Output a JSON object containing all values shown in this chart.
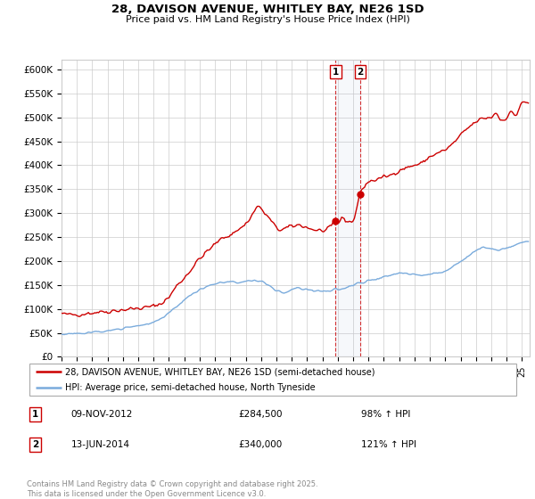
{
  "title": "28, DAVISON AVENUE, WHITLEY BAY, NE26 1SD",
  "subtitle": "Price paid vs. HM Land Registry's House Price Index (HPI)",
  "ylim": [
    0,
    620000
  ],
  "yticks": [
    0,
    50000,
    100000,
    150000,
    200000,
    250000,
    300000,
    350000,
    400000,
    450000,
    500000,
    550000,
    600000
  ],
  "ytick_labels": [
    "£0",
    "£50K",
    "£100K",
    "£150K",
    "£200K",
    "£250K",
    "£300K",
    "£350K",
    "£400K",
    "£450K",
    "£500K",
    "£550K",
    "£600K"
  ],
  "xlim_start": 1995.0,
  "xlim_end": 2025.5,
  "property_color": "#cc0000",
  "hpi_color": "#7aabdc",
  "sale1_date": 2012.86,
  "sale1_price": 284500,
  "sale2_date": 2014.45,
  "sale2_price": 340000,
  "sale1_label": "1",
  "sale2_label": "2",
  "sale1_info": "09-NOV-2012",
  "sale1_amount": "£284,500",
  "sale1_hpi": "98% ↑ HPI",
  "sale2_info": "13-JUN-2014",
  "sale2_amount": "£340,000",
  "sale2_hpi": "121% ↑ HPI",
  "legend1": "28, DAVISON AVENUE, WHITLEY BAY, NE26 1SD (semi-detached house)",
  "legend2": "HPI: Average price, semi-detached house, North Tyneside",
  "footer": "Contains HM Land Registry data © Crown copyright and database right 2025.\nThis data is licensed under the Open Government Licence v3.0.",
  "background_color": "#ffffff",
  "grid_color": "#cccccc"
}
